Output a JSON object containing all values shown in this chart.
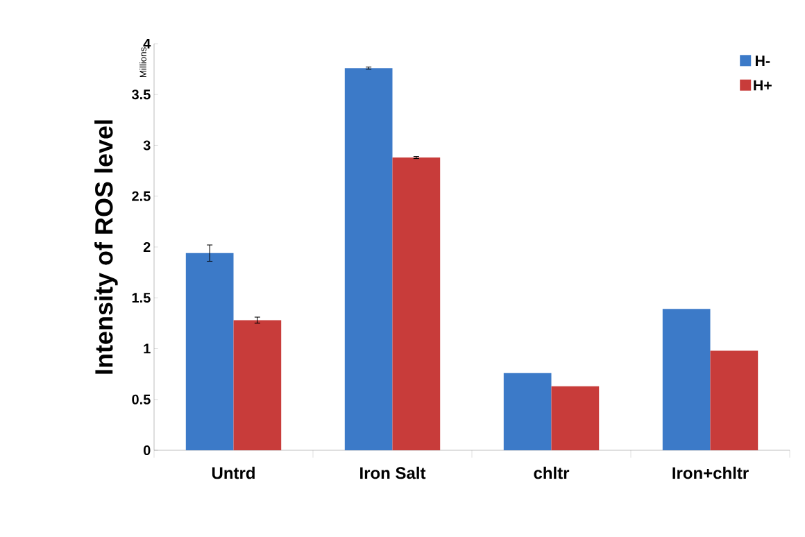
{
  "chart_data": {
    "type": "bar",
    "ylabel": "Intensity of ROS level",
    "annotations": [
      "Millions"
    ],
    "categories": [
      "Untrd",
      "Iron Salt",
      "chltr",
      "Iron+chltr"
    ],
    "series": [
      {
        "name": "H-",
        "color": "#3c7ac8",
        "values": [
          1.94,
          3.76,
          0.76,
          1.39
        ],
        "errors": [
          0.08,
          0.01,
          null,
          null
        ]
      },
      {
        "name": "H+",
        "color": "#c83c3a",
        "values": [
          1.28,
          2.88,
          0.63,
          0.98
        ],
        "errors": [
          0.03,
          0.01,
          null,
          null
        ]
      }
    ],
    "ylim": [
      0,
      4
    ],
    "yticks": [
      0,
      0.5,
      1,
      1.5,
      2,
      2.5,
      3,
      3.5,
      4
    ],
    "grid": false,
    "legend": "top right"
  }
}
